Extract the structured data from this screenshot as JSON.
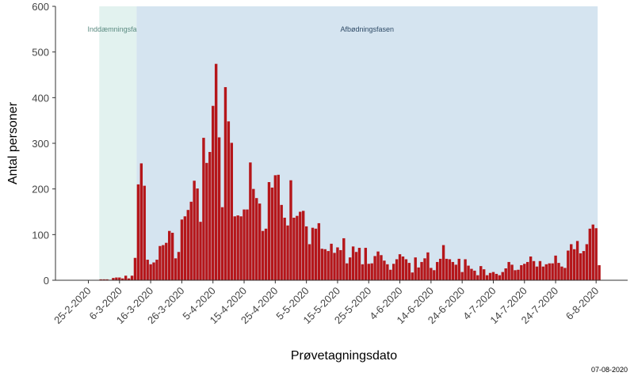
{
  "chart_data": {
    "type": "bar",
    "title": "",
    "xlabel": "Prøvetagningsdato",
    "ylabel": "Antal personer",
    "ylim": [
      0,
      600
    ],
    "yticks": [
      0,
      100,
      200,
      300,
      400,
      500,
      600
    ],
    "x_start": "2020-02-25",
    "xticks": [
      "25-2-2020",
      "6-3-2020",
      "16-3-2020",
      "26-3-2020",
      "5-4-2020",
      "15-4-2020",
      "25-4-2020",
      "5-5-2020",
      "15-5-2020",
      "25-5-2020",
      "4-6-2020",
      "14-6-2020",
      "24-6-2020",
      "4-7-2020",
      "14-7-2020",
      "24-7-2020",
      "6-8-2020"
    ],
    "bar_color": "#b5161a",
    "phases": [
      {
        "label": "Inddæmningsfasen",
        "start": "2020-02-29",
        "end": "2020-03-11",
        "color": "#e2f2ef",
        "label_color": "#5a8a80"
      },
      {
        "label": "Afbødningsfasen",
        "start": "2020-03-12",
        "end": "2020-08-06",
        "color": "#d5e4f0",
        "label_color": "#2e4a66"
      }
    ],
    "footer": "07-08-2020",
    "values": [
      0,
      0,
      0,
      0,
      2,
      2,
      2,
      1,
      5,
      6,
      6,
      4,
      10,
      4,
      10,
      49,
      210,
      256,
      207,
      45,
      35,
      39,
      45,
      75,
      77,
      82,
      108,
      104,
      48,
      62,
      133,
      140,
      154,
      172,
      218,
      201,
      128,
      312,
      257,
      281,
      382,
      474,
      313,
      160,
      423,
      348,
      301,
      140,
      142,
      140,
      155,
      155,
      258,
      200,
      180,
      168,
      108,
      113,
      215,
      203,
      230,
      231,
      165,
      137,
      120,
      219,
      137,
      141,
      150,
      152,
      118,
      79,
      115,
      113,
      125,
      69,
      68,
      64,
      80,
      60,
      72,
      66,
      92,
      37,
      50,
      74,
      62,
      71,
      35,
      71,
      36,
      37,
      53,
      63,
      55,
      43,
      35,
      23,
      36,
      46,
      57,
      52,
      46,
      38,
      17,
      50,
      28,
      40,
      48,
      61,
      27,
      22,
      40,
      47,
      77,
      47,
      46,
      40,
      34,
      47,
      18,
      46,
      32,
      25,
      21,
      11,
      31,
      24,
      11,
      16,
      18,
      14,
      11,
      18,
      26,
      40,
      34,
      22,
      23,
      33,
      36,
      40,
      52,
      42,
      30,
      42,
      30,
      35,
      37,
      37,
      54,
      38,
      30,
      27,
      65,
      79,
      68,
      86,
      59,
      64,
      79,
      113,
      122,
      114,
      33
    ]
  }
}
